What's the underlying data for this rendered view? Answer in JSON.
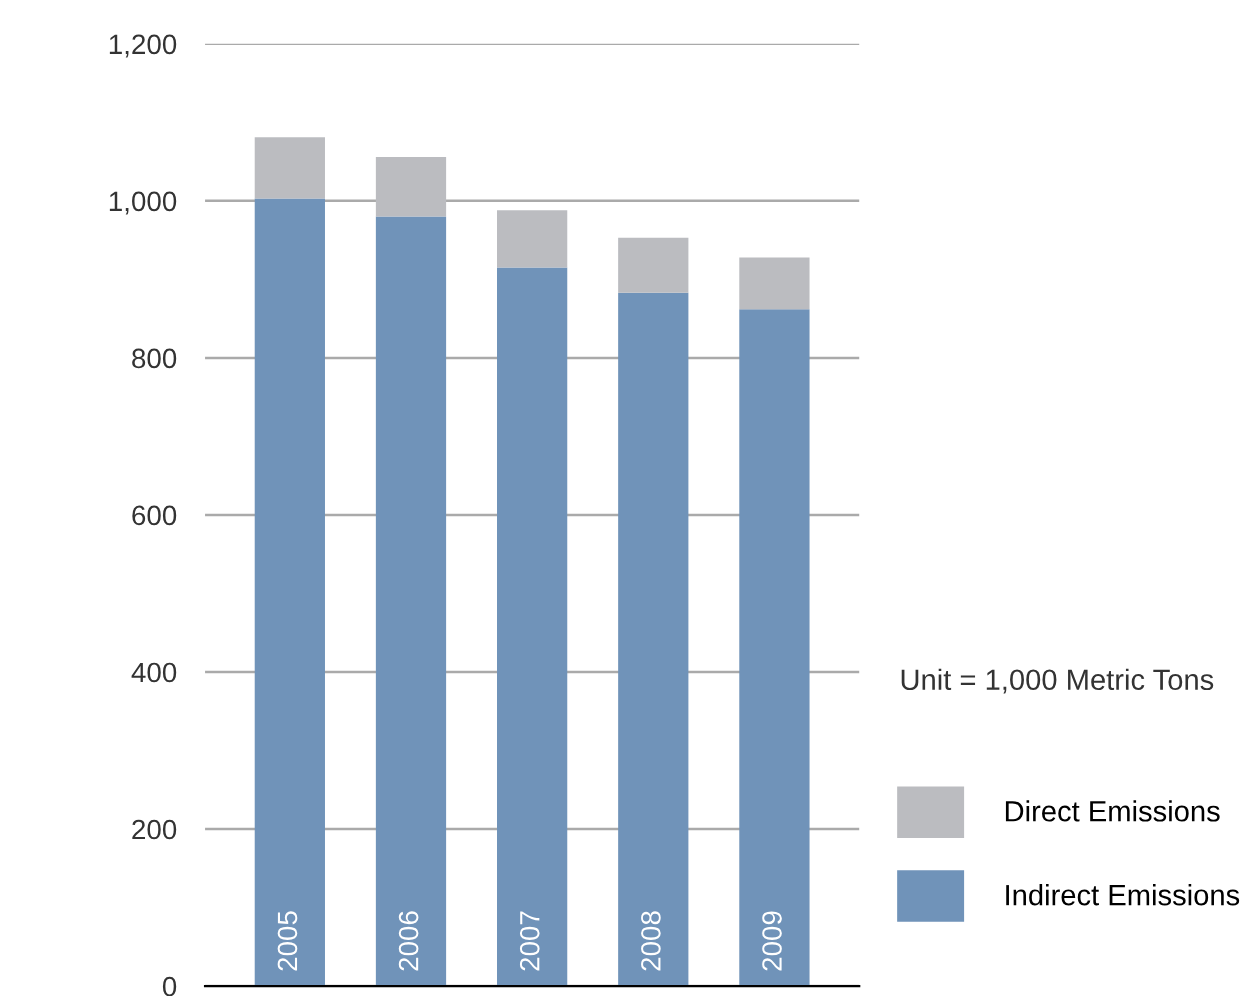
{
  "chart_data": {
    "type": "bar",
    "stacked": true,
    "categories": [
      "2005",
      "2006",
      "2007",
      "2008",
      "2009"
    ],
    "series": [
      {
        "name": "Indirect Emissions",
        "color": "#7093b9",
        "values": [
          1003,
          980,
          915,
          883,
          862
        ]
      },
      {
        "name": "Direct Emissions",
        "color": "#bbbcc0",
        "values": [
          78,
          76,
          73,
          70,
          66
        ]
      }
    ],
    "ylim": [
      0,
      1200
    ],
    "yticks": [
      0,
      200,
      400,
      600,
      800,
      {
        "value": 1000,
        "label": "1,000"
      },
      {
        "value": 1200,
        "label": "1,200"
      }
    ],
    "grid": "y",
    "legend": "right",
    "annotations": [
      "Unit = 1,000 Metric Tons"
    ]
  }
}
